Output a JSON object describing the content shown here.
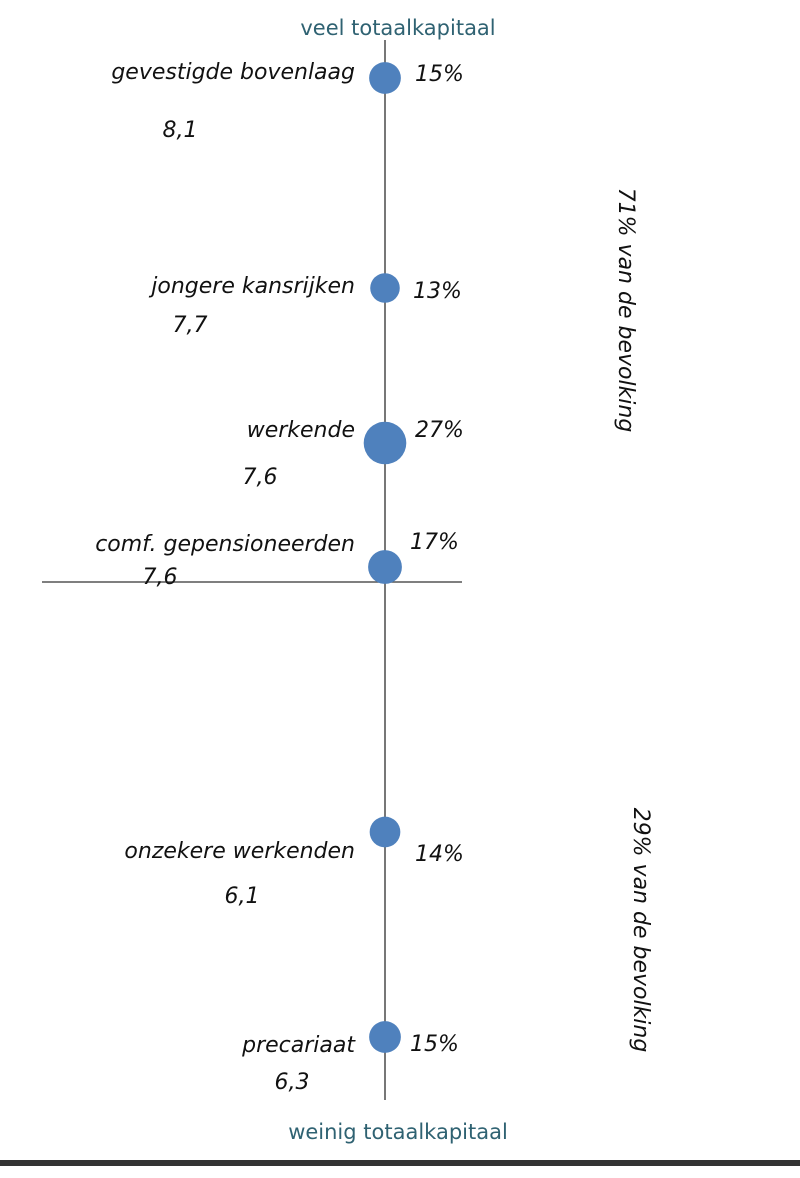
{
  "top_label": "veel totaalkapitaal",
  "bottom_label": "weinig totaalkapitaal",
  "groups": [
    {
      "label": "71% van de bevolking"
    },
    {
      "label": "29% van de bevolking"
    }
  ],
  "nodes": [
    {
      "label": "gevestigde bovenlaag",
      "score": "8,1",
      "share": 15,
      "share_label": "15%"
    },
    {
      "label": "jongere kansrijken",
      "score": "7,7",
      "share": 13,
      "share_label": "13%"
    },
    {
      "label": "werkende",
      "score": "7,6",
      "share": 27,
      "share_label": "27%"
    },
    {
      "label": "comf. gepensioneerden",
      "score": "7,6",
      "share": 17,
      "share_label": "17%"
    },
    {
      "label": "onzekere werkenden",
      "score": "6,1",
      "share": 14,
      "share_label": "14%"
    },
    {
      "label": "precariaat",
      "score": "6,3",
      "share": 15,
      "share_label": "15%"
    }
  ]
}
